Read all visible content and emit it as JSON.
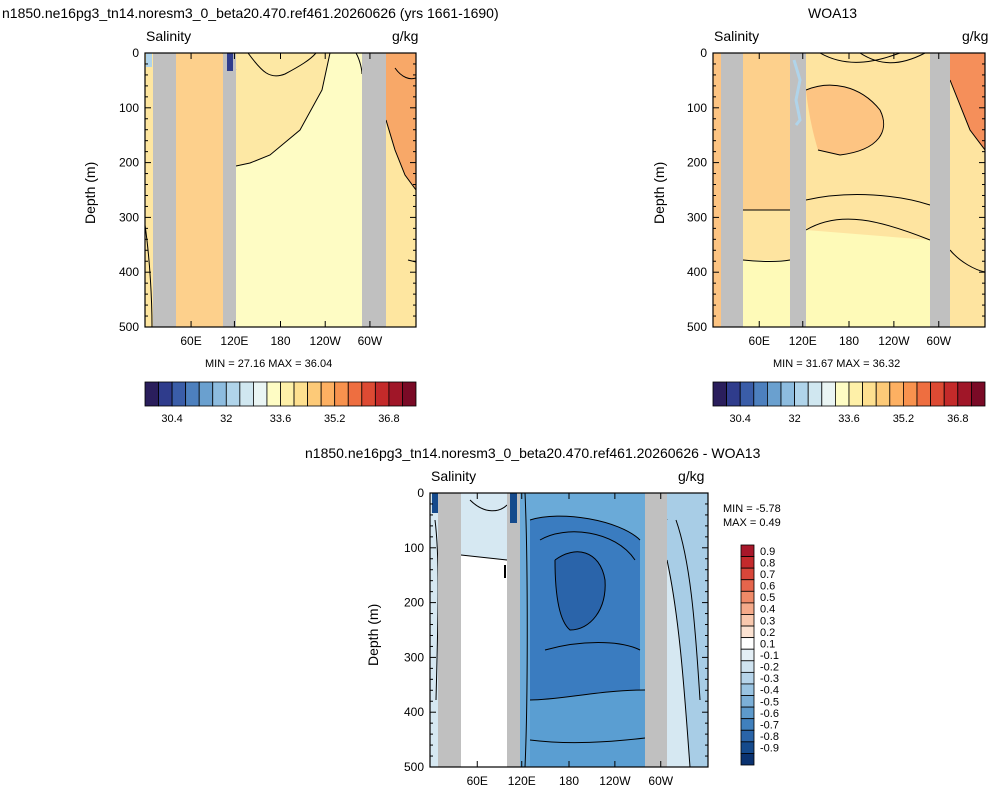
{
  "panels": [
    {
      "id": "model",
      "title": "n1850.ne16pg3_tn14.noresm3_0_beta20.470.ref461.20260626 (yrs 1661-1690)",
      "variable": "Salinity",
      "units": "g/kg",
      "ylabel": "Depth (m)",
      "min_max": "MIN = 27.16  MAX = 36.04"
    },
    {
      "id": "obs",
      "title": "WOA13",
      "variable": "Salinity",
      "units": "g/kg",
      "ylabel": "Depth (m)",
      "min_max": "MIN = 31.67  MAX = 36.32"
    },
    {
      "id": "diff",
      "title": "n1850.ne16pg3_tn14.noresm3_0_beta20.470.ref461.20260626 - WOA13",
      "variable": "Salinity",
      "units": "g/kg",
      "ylabel": "Depth (m)",
      "min": "MIN = -5.78",
      "max": "MAX =  0.49"
    }
  ],
  "chart_data": [
    {
      "type": "heatmap",
      "title": "n1850.ne16pg3_tn14.noresm3_0_beta20.470.ref461.20260626 (yrs 1661-1690)",
      "ylabel": "Depth (m)",
      "y_ticks": [
        "0",
        "100",
        "200",
        "300",
        "400",
        "500"
      ],
      "ylim": [
        500,
        0
      ],
      "x_ticks": [
        "60E",
        "120E",
        "180",
        "120W",
        "60W"
      ],
      "colorbar_ticks": [
        "30.4",
        "32",
        "33.6",
        "35.2",
        "36.8"
      ],
      "colorbar_range": [
        29.6,
        37.6
      ],
      "colorbar_orientation": "horizontal",
      "min": 27.16,
      "max": 36.04,
      "colors": {
        "land": "#c0c0c0",
        "zone_a": "#fee6a0",
        "zone_b": "#fdd08c",
        "zone_c": "#fefcc4",
        "zone_d": "#fde8a4",
        "zone_e": "#f8a868"
      }
    },
    {
      "type": "heatmap",
      "title": "WOA13",
      "ylabel": "Depth (m)",
      "y_ticks": [
        "0",
        "100",
        "200",
        "300",
        "400",
        "500"
      ],
      "ylim": [
        500,
        0
      ],
      "x_ticks": [
        "60E",
        "120E",
        "180",
        "120W",
        "60W"
      ],
      "colorbar_ticks": [
        "30.4",
        "32",
        "33.6",
        "35.2",
        "36.8"
      ],
      "colorbar_range": [
        29.6,
        37.6
      ],
      "colorbar_orientation": "horizontal",
      "min": 31.67,
      "max": 36.32,
      "colors": {
        "land": "#c0c0c0",
        "zone_a": "#fdc482",
        "zone_b": "#fee4a0",
        "zone_c": "#fdd08c",
        "zone_d": "#fefab8",
        "zone_e": "#f58f5a"
      }
    },
    {
      "type": "heatmap",
      "title": "n1850.ne16pg3_tn14.noresm3_0_beta20.470.ref461.20260626 - WOA13",
      "ylabel": "Depth (m)",
      "y_ticks": [
        "0",
        "100",
        "200",
        "300",
        "400",
        "500"
      ],
      "ylim": [
        500,
        0
      ],
      "x_ticks": [
        "60E",
        "120E",
        "180",
        "120W",
        "60W"
      ],
      "colorbar_ticks": [
        "0.9",
        "0.8",
        "0.7",
        "0.6",
        "0.5",
        "0.4",
        "0.3",
        "0.2",
        "0.1",
        "-0.1",
        "-0.2",
        "-0.3",
        "-0.4",
        "-0.5",
        "-0.6",
        "-0.7",
        "-0.8",
        "-0.9"
      ],
      "colorbar_orientation": "vertical",
      "min": -5.78,
      "max": 0.49,
      "colors": {
        "land": "#c0c0c0",
        "blue_light": "#d6e8f2",
        "blue_mid": "#6aaad8",
        "blue_deep": "#3a7cc0",
        "blue_core": "#2a64aa",
        "blue_lower": "#5a9ed2",
        "white": "#ffffff"
      }
    }
  ],
  "colorbar_palette_horizontal": [
    "#2a1e5c",
    "#2f3c8c",
    "#3a5da8",
    "#4d80be",
    "#6aa0cf",
    "#8dbcdf",
    "#b0d4ea",
    "#d0e7f0",
    "#eaf5f4",
    "#fefcc4",
    "#fef0a8",
    "#fee090",
    "#fdca78",
    "#fdb062",
    "#f8924e",
    "#ee6e40",
    "#dd4a33",
    "#c42a2a",
    "#a01628",
    "#7a0a26"
  ],
  "colorbar_palette_vertical": [
    "#a8172a",
    "#c42a2c",
    "#d8463a",
    "#e5654c",
    "#ef8a68",
    "#f4aa8a",
    "#f8c8ae",
    "#fbe2d2",
    "#ffffff",
    "#e4eff6",
    "#cfe3f0",
    "#b6d4ea",
    "#9ac4e2",
    "#7cb0d8",
    "#5d9acc",
    "#4080bd",
    "#2a64a8",
    "#154a8c",
    "#0a3270"
  ]
}
